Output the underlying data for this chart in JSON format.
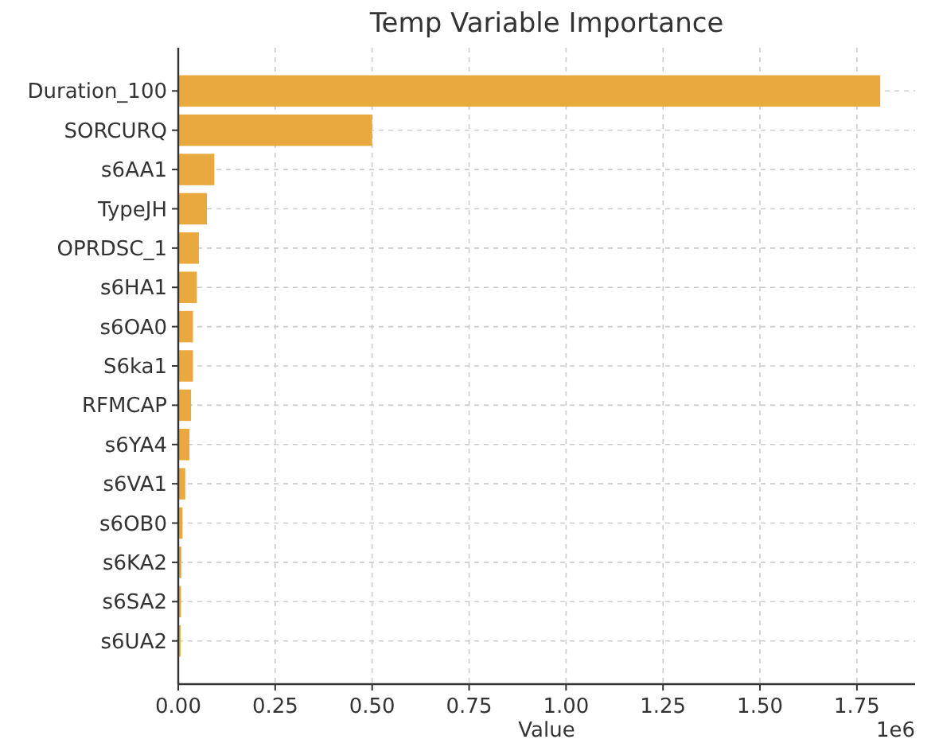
{
  "chart_data": {
    "type": "bar",
    "orientation": "horizontal",
    "title": "Temp Variable Importance",
    "xlabel": "Value",
    "categories": [
      "Duration_100",
      "SORCURQ",
      "s6AA1",
      "TypeJH",
      "OPRDSC_1",
      "s6HA1",
      "s6OA0",
      "S6ka1",
      "RFMCAP",
      "s6YA4",
      "s6VA1",
      "s6OB0",
      "s6KA2",
      "s6SA2",
      "s6UA2"
    ],
    "values": [
      1.81,
      0.5,
      0.093,
      0.074,
      0.053,
      0.048,
      0.038,
      0.038,
      0.033,
      0.029,
      0.018,
      0.011,
      0.008,
      0.007,
      0.006
    ],
    "color": "#e8a93f",
    "xlim": [
      0,
      1.9
    ],
    "xticks": [
      {
        "value": 0,
        "label": "0.00"
      },
      {
        "value": 0.25,
        "label": "0.25"
      },
      {
        "value": 0.5,
        "label": "0.50"
      },
      {
        "value": 0.75,
        "label": "0.75"
      },
      {
        "value": 1,
        "label": "1.00"
      },
      {
        "value": 1.25,
        "label": "1.25"
      },
      {
        "value": 1.5,
        "label": "1.50"
      },
      {
        "value": 1.75,
        "label": "1.75"
      }
    ],
    "annotations": [
      "1e6"
    ],
    "grid": true
  }
}
